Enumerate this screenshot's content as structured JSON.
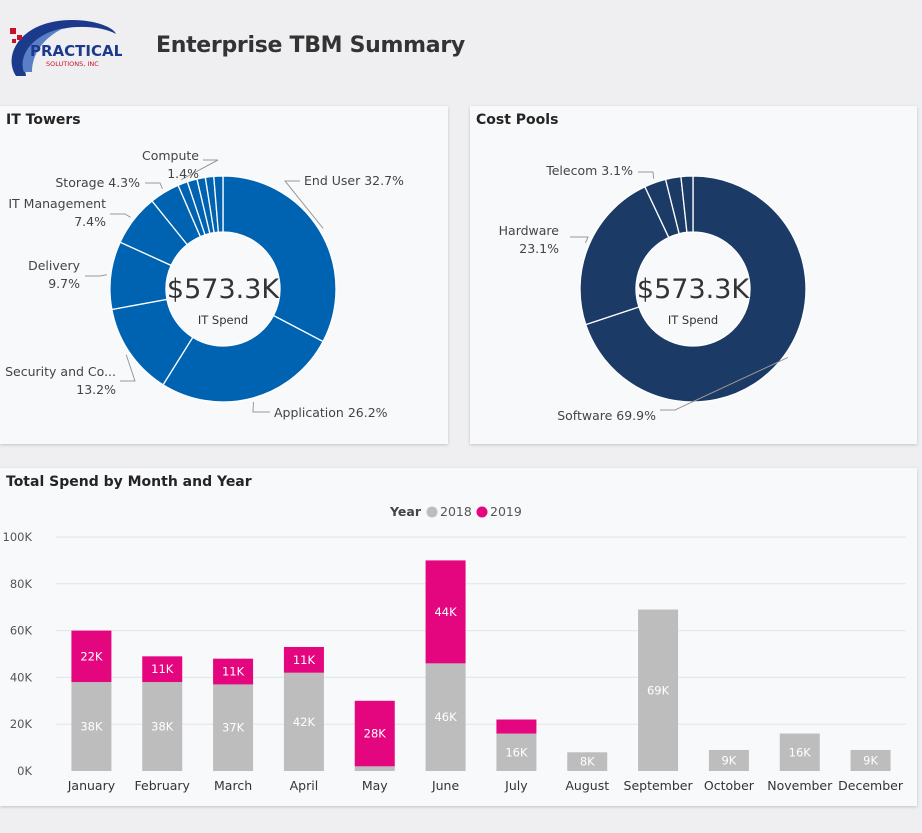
{
  "header": {
    "title": "Enterprise TBM Summary",
    "logo_text": "PRACTICAL",
    "logo_subtext": "SOLUTIONS, INC"
  },
  "colors": {
    "tower_blue": "#0063b1",
    "cost_navy": "#1b3a66",
    "year2018": "#bdbdbd",
    "year2019": "#e3067f"
  },
  "chart_data": [
    {
      "type": "pie",
      "title": "IT Towers",
      "center_value": "$573.3K",
      "center_label": "IT Spend",
      "slices": [
        {
          "label": "End User",
          "pct_text": "32.7%",
          "value": 32.7
        },
        {
          "label": "Application",
          "pct_text": "26.2%",
          "value": 26.2
        },
        {
          "label": "Security and Co...",
          "pct_text": "13.2%",
          "value": 13.2
        },
        {
          "label": "Delivery",
          "pct_text": "9.7%",
          "value": 9.7
        },
        {
          "label": "IT Management",
          "pct_text": "7.4%",
          "value": 7.4
        },
        {
          "label": "Storage",
          "pct_text": "4.3%",
          "value": 4.3
        },
        {
          "label": "Compute",
          "pct_text": "1.4%",
          "value": 1.4
        },
        {
          "label": "",
          "pct_text": "",
          "value": 1.4
        },
        {
          "label": "",
          "pct_text": "",
          "value": 1.2
        },
        {
          "label": "",
          "pct_text": "",
          "value": 1.2
        },
        {
          "label": "",
          "pct_text": "",
          "value": 1.3
        }
      ]
    },
    {
      "type": "pie",
      "title": "Cost Pools",
      "center_value": "$573.3K",
      "center_label": "IT Spend",
      "slices": [
        {
          "label": "Software",
          "pct_text": "69.9%",
          "value": 69.9
        },
        {
          "label": "Hardware",
          "pct_text": "23.1%",
          "value": 23.1
        },
        {
          "label": "Telecom",
          "pct_text": "3.1%",
          "value": 3.1
        },
        {
          "label": "",
          "pct_text": "",
          "value": 2.2
        },
        {
          "label": "",
          "pct_text": "",
          "value": 1.7
        }
      ]
    },
    {
      "type": "bar",
      "stacked": true,
      "title": "Total Spend by Month and Year",
      "legend_title": "Year",
      "legend_position": "top-center",
      "categories": [
        "January",
        "February",
        "March",
        "April",
        "May",
        "June",
        "July",
        "August",
        "September",
        "October",
        "November",
        "December"
      ],
      "series": [
        {
          "name": "2018",
          "values": [
            38,
            38,
            37,
            42,
            2,
            46,
            16,
            8,
            69,
            9,
            16,
            9
          ],
          "labels": [
            "38K",
            "38K",
            "37K",
            "42K",
            "",
            "46K",
            "16K",
            "8K",
            "69K",
            "9K",
            "16K",
            "9K"
          ]
        },
        {
          "name": "2019",
          "values": [
            22,
            11,
            11,
            11,
            28,
            44,
            6,
            0,
            0,
            0,
            0,
            0
          ],
          "labels": [
            "22K",
            "11K",
            "11K",
            "11K",
            "28K",
            "44K",
            "",
            "",
            "",
            "",
            "",
            ""
          ]
        }
      ],
      "yticks": [
        "0K",
        "20K",
        "40K",
        "60K",
        "80K",
        "100K"
      ],
      "ylim": [
        0,
        100
      ],
      "grid": true
    }
  ]
}
